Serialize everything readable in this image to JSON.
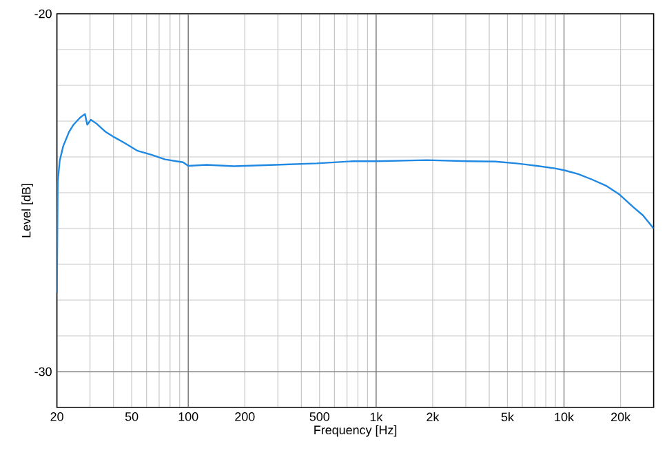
{
  "chart_data": {
    "type": "line",
    "xlabel": "Frequency [Hz]",
    "ylabel": "Level [dB]",
    "log": "x",
    "grid": true,
    "xlim": [
      20,
      30000
    ],
    "ylim": [
      -31,
      -20
    ],
    "xticks": [
      20,
      {
        "value": 30,
        "label": null
      },
      {
        "value": 40,
        "label": null
      },
      50,
      {
        "value": 60,
        "label": null
      },
      {
        "value": 70,
        "label": null
      },
      {
        "value": 80,
        "label": null
      },
      {
        "value": 90,
        "label": null
      },
      100,
      200,
      {
        "value": 300,
        "label": null
      },
      {
        "value": 400,
        "label": null
      },
      500,
      {
        "value": 600,
        "label": null
      },
      {
        "value": 700,
        "label": null
      },
      {
        "value": 800,
        "label": null
      },
      {
        "value": 900,
        "label": null
      },
      {
        "value": 1000,
        "label": "1k"
      },
      {
        "value": 2000,
        "label": "2k"
      },
      {
        "value": 3000,
        "label": null
      },
      {
        "value": 4000,
        "label": null
      },
      {
        "value": 5000,
        "label": "5k"
      },
      {
        "value": 6000,
        "label": null
      },
      {
        "value": 7000,
        "label": null
      },
      {
        "value": 8000,
        "label": null
      },
      {
        "value": 9000,
        "label": null
      },
      {
        "value": 10000,
        "label": "10k"
      },
      {
        "value": 20000,
        "label": "20k"
      }
    ],
    "yticks": [
      -20,
      {
        "value": -21,
        "label": null
      },
      {
        "value": -22,
        "label": null
      },
      {
        "value": -23,
        "label": null
      },
      {
        "value": -24,
        "label": null
      },
      {
        "value": -25,
        "label": null
      },
      {
        "value": -26,
        "label": null
      },
      {
        "value": -27,
        "label": null
      },
      {
        "value": -28,
        "label": null
      },
      {
        "value": -29,
        "label": null
      },
      -30
    ],
    "x": [
      20,
      20.2,
      20.7,
      21.6,
      23.2,
      24.5,
      26.6,
      28.2,
      29.0,
      30.3,
      32.5,
      36.3,
      40.4,
      45.5,
      53.8,
      63.7,
      75.4,
      93.9,
      100,
      125,
      175,
      291,
      482,
      757,
      1000,
      1860,
      3085,
      4320,
      5570,
      7170,
      8930,
      10000,
      11900,
      14080,
      16670,
      19730,
      23360,
      26290,
      30000
    ],
    "series": [
      {
        "color": "#1f88e3",
        "values": [
          -27.8,
          -24.7,
          -24.1,
          -23.7,
          -23.3,
          -23.1,
          -22.9,
          -22.8,
          -23.1,
          -22.96,
          -23.07,
          -23.3,
          -23.45,
          -23.6,
          -23.83,
          -23.94,
          -24.07,
          -24.15,
          -24.25,
          -24.22,
          -24.26,
          -24.22,
          -24.18,
          -24.12,
          -24.12,
          -24.09,
          -24.12,
          -24.13,
          -24.18,
          -24.25,
          -24.32,
          -24.37,
          -24.48,
          -24.63,
          -24.8,
          -25.05,
          -25.4,
          -25.63,
          -26.0
        ]
      }
    ]
  }
}
